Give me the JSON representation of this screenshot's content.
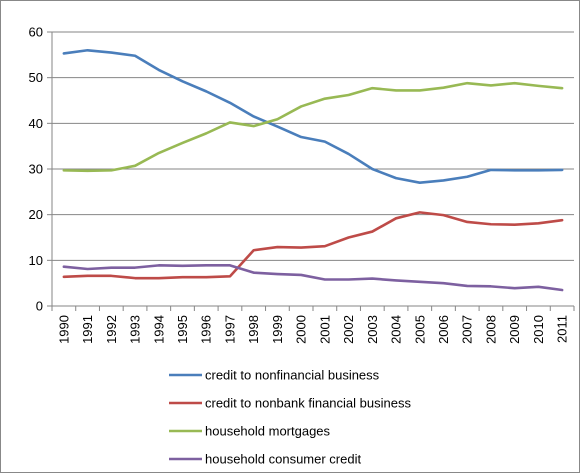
{
  "chart_data": {
    "type": "line",
    "title": "",
    "xlabel": "",
    "ylabel": "",
    "ylim": [
      0,
      60
    ],
    "yticks": [
      0,
      10,
      20,
      30,
      40,
      50,
      60
    ],
    "grid": "horizontal",
    "legend_position": "bottom",
    "categories": [
      "1990",
      "1991",
      "1992",
      "1993",
      "1994",
      "1995",
      "1996",
      "1997",
      "1998",
      "1999",
      "2000",
      "2001",
      "2002",
      "2003",
      "2004",
      "2005",
      "2006",
      "2007",
      "2008",
      "2009",
      "2010",
      "2011"
    ],
    "series": [
      {
        "name": "credit to nonfinancial business",
        "color": "#4a7ebb",
        "values": [
          55.3,
          56.0,
          55.5,
          54.8,
          51.7,
          49.2,
          47.0,
          44.5,
          41.5,
          39.3,
          37.0,
          36.0,
          33.3,
          30.0,
          28.0,
          27.0,
          27.5,
          28.3,
          29.8,
          29.7,
          29.7,
          29.8
        ]
      },
      {
        "name": "credit to nonbank financial business",
        "color": "#be4b48",
        "values": [
          6.4,
          6.6,
          6.6,
          6.1,
          6.1,
          6.3,
          6.3,
          6.5,
          12.2,
          12.9,
          12.8,
          13.1,
          15.0,
          16.3,
          19.2,
          20.5,
          19.9,
          18.4,
          17.9,
          17.8,
          18.1,
          18.8
        ]
      },
      {
        "name": "household mortgages",
        "color": "#98b954",
        "values": [
          29.7,
          29.6,
          29.7,
          30.7,
          33.5,
          35.7,
          37.8,
          40.2,
          39.4,
          40.9,
          43.7,
          45.4,
          46.2,
          47.7,
          47.2,
          47.2,
          47.8,
          48.8,
          48.3,
          48.8,
          48.2,
          47.7
        ]
      },
      {
        "name": "household consumer credit",
        "color": "#7d60a0",
        "values": [
          8.6,
          8.1,
          8.4,
          8.4,
          8.9,
          8.8,
          8.9,
          8.9,
          7.3,
          7.0,
          6.8,
          5.8,
          5.8,
          6.0,
          5.6,
          5.3,
          5.0,
          4.4,
          4.3,
          3.9,
          4.2,
          3.5
        ]
      }
    ]
  }
}
